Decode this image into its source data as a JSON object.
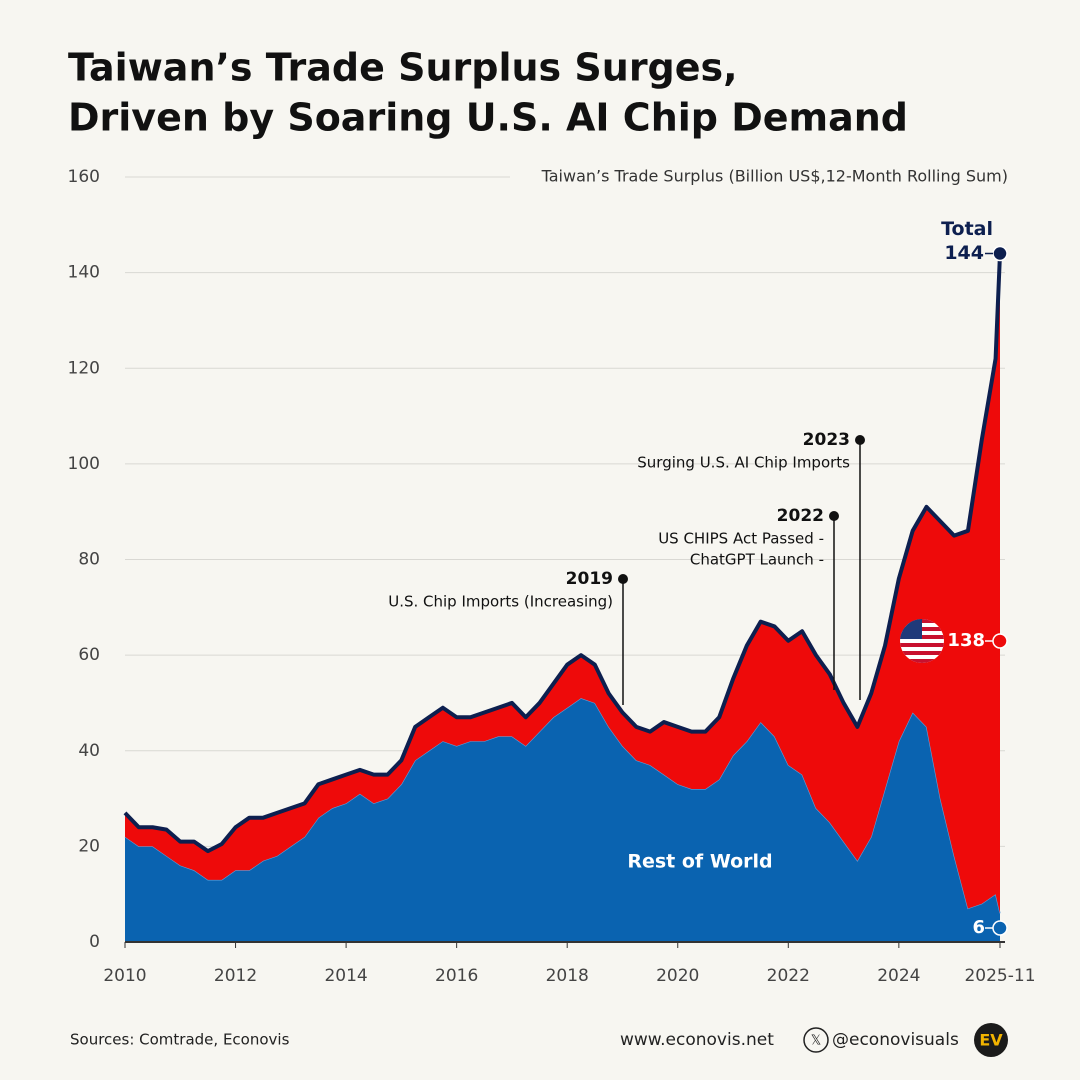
{
  "chart_data": {
    "type": "stacked-area",
    "title": [
      "Taiwan’s Trade Surplus Surges,",
      "Driven by Soaring U.S. AI Chip Demand"
    ],
    "subtitle": "Taiwan’s Trade Surplus (Billion US$,12-Month Rolling Sum)",
    "x": [
      2010,
      2010.25,
      2010.5,
      2010.75,
      2011,
      2011.25,
      2011.5,
      2011.75,
      2012,
      2012.25,
      2012.5,
      2012.75,
      2013,
      2013.25,
      2013.5,
      2013.75,
      2014,
      2014.25,
      2014.5,
      2014.75,
      2015,
      2015.25,
      2015.5,
      2015.75,
      2016,
      2016.25,
      2016.5,
      2016.75,
      2017,
      2017.25,
      2017.5,
      2017.75,
      2018,
      2018.25,
      2018.5,
      2018.75,
      2019,
      2019.25,
      2019.5,
      2019.75,
      2020,
      2020.25,
      2020.5,
      2020.75,
      2021,
      2021.25,
      2021.5,
      2021.75,
      2022,
      2022.25,
      2022.5,
      2022.75,
      2023,
      2023.25,
      2023.5,
      2023.75,
      2024,
      2024.25,
      2024.5,
      2024.75,
      2025,
      2025.25,
      2025.5,
      2025.75,
      2025.83
    ],
    "series": [
      {
        "name": "Rest of World",
        "color": "#0a63b0",
        "values": [
          22,
          20,
          20,
          18,
          16,
          15,
          13,
          13,
          15,
          15,
          17,
          18,
          20,
          22,
          26,
          28,
          29,
          31,
          29,
          30,
          33,
          38,
          40,
          42,
          41,
          42,
          42,
          43,
          43,
          41,
          44,
          47,
          49,
          51,
          50,
          45,
          41,
          38,
          37,
          35,
          33,
          32,
          32,
          34,
          39,
          42,
          46,
          43,
          37,
          35,
          28,
          25,
          21,
          17,
          22,
          32,
          42,
          48,
          45,
          30,
          18,
          7,
          8,
          10,
          6
        ]
      },
      {
        "name": "U.S.",
        "color": "#ee0a0a",
        "values": [
          5,
          4,
          4,
          5.5,
          5,
          6,
          6,
          7.5,
          9,
          11,
          9,
          9,
          8,
          7,
          7,
          6,
          6,
          5,
          6,
          5,
          5,
          7,
          7,
          7,
          6,
          5,
          6,
          6,
          7,
          6,
          6,
          7,
          9,
          9,
          8,
          7,
          7,
          7,
          7,
          11,
          12,
          12,
          12,
          13,
          16,
          20,
          21,
          23,
          26,
          30,
          32,
          31,
          29,
          28,
          30,
          30,
          34,
          38,
          46,
          58,
          67,
          79,
          97,
          112,
          138
        ]
      }
    ],
    "total": {
      "label": "Total",
      "value": 144,
      "color": "#0d1f4f"
    },
    "ylim": [
      0,
      160
    ],
    "yticks": [
      0,
      20,
      40,
      60,
      80,
      100,
      120,
      140,
      160
    ],
    "xlim": [
      2010,
      2025.83
    ],
    "xticks": [
      2010,
      2012,
      2014,
      2016,
      2018,
      2020,
      2022,
      2024,
      {
        "value": 2025.83,
        "label": "2025-11"
      }
    ],
    "grid": true,
    "annotations": [
      {
        "year": "2019",
        "text": [
          "U.S. Chip Imports (Increasing)"
        ]
      },
      {
        "year": "2022",
        "text": [
          "US CHIPS Act Passed -",
          "ChatGPT Launch -"
        ]
      },
      {
        "year": "2023",
        "text": [
          "Surging U.S. AI Chip Imports"
        ]
      }
    ]
  },
  "footer": {
    "sources": "Sources: Comtrade, Econovis",
    "website": "www.econovis.net",
    "handle": "@econovisuals",
    "logo": "EV"
  }
}
